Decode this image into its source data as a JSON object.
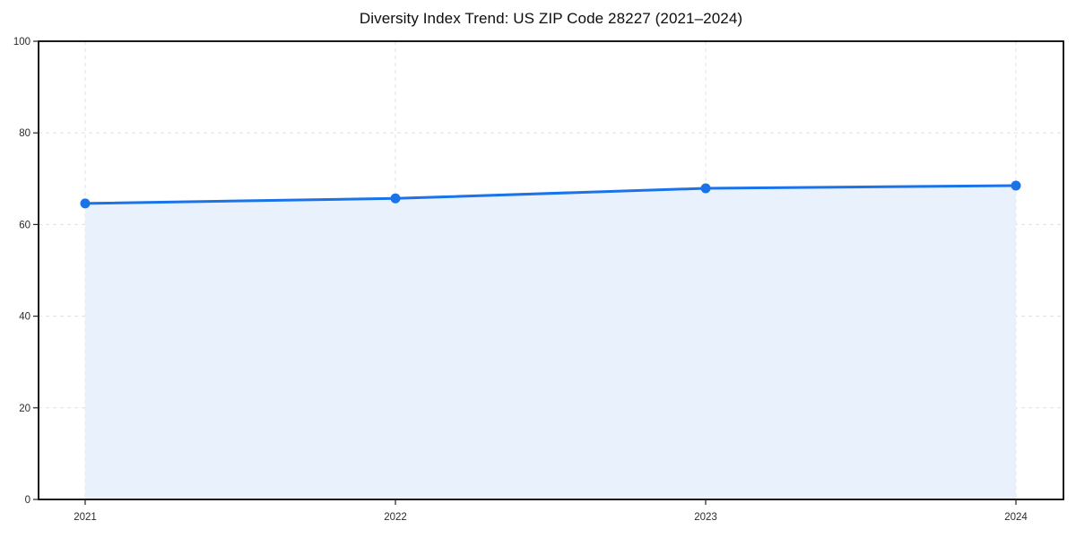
{
  "chart_data": {
    "type": "area",
    "title": "Diversity Index Trend: US ZIP Code 28227 (2021–2024)",
    "categories": [
      "2021",
      "2022",
      "2023",
      "2024"
    ],
    "series": [
      {
        "name": "Diversity Index",
        "values": [
          64.6,
          65.7,
          67.9,
          68.5
        ]
      }
    ],
    "xlabel": "",
    "ylabel": "",
    "ylim": [
      0,
      100
    ],
    "yticks": [
      0,
      20,
      40,
      60,
      80,
      100
    ],
    "grid": "dashed",
    "legend": "none",
    "colors": {
      "line": "#1a73e8",
      "marker": "#1a73e8",
      "fill": "#e8f1fc",
      "grid": "#e0e0e0",
      "spine": "#000000",
      "tick": "#222222",
      "tick_text": "#2b2b2b",
      "title_text": "#0d0d0d",
      "background": "#ffffff"
    }
  }
}
